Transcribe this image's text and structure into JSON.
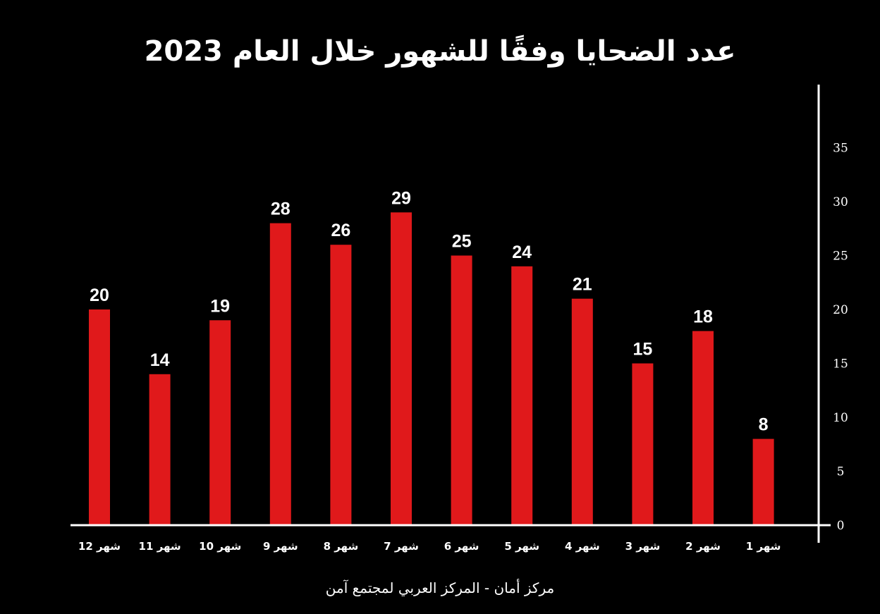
{
  "title": "عدد الضحايا وفقًا للشهور خلال العام 2023",
  "footer": "مركز أمان - المركز العربي لمجتمع آمن",
  "colors": {
    "bar": "#e0191b",
    "background": "#000000",
    "text": "#ffffff"
  },
  "chart_data": {
    "type": "bar",
    "categories": [
      "شهر 12",
      "شهر 11",
      "شهر 10",
      "شهر 9",
      "شهر 8",
      "شهر 7",
      "شهر 6",
      "شهر 5",
      "شهر 4",
      "شهر 3",
      "شهر 2",
      "شهر 1"
    ],
    "values": [
      20,
      14,
      19,
      28,
      26,
      29,
      25,
      24,
      21,
      15,
      18,
      8
    ],
    "y_ticks": [
      "0",
      "5",
      "10",
      "15",
      "20",
      "25",
      "30",
      "35"
    ],
    "ylim": [
      0,
      40
    ],
    "y_axis_side": "right",
    "grid": false,
    "data_labels": true
  }
}
